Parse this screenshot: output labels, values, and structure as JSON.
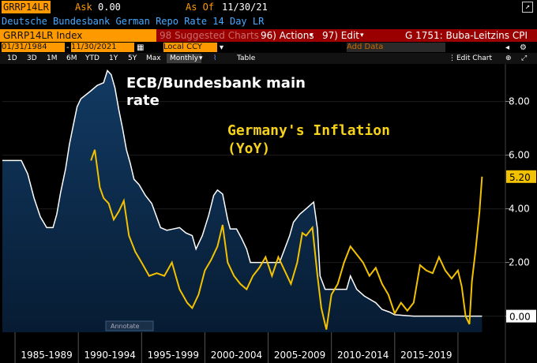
{
  "header": {
    "ticker": "GRRP14LR",
    "ask_label": "Ask",
    "ask_value": "0.00",
    "asof_label": "As Of",
    "asof_date": "11/30/21",
    "description": "Deutsche Bundesbank German Repo Rate 14 Day LR"
  },
  "toolbar": {
    "security": "GRRP14LR Index",
    "suggested": "98 Suggested Charts",
    "actions": "96) Actions",
    "edit": "97) Edit",
    "compare": "G 1751: Buba-Leitzins CPI"
  },
  "range": {
    "start": "01/31/1984",
    "end": "11/30/2021",
    "currency": "Local CCY"
  },
  "periods": [
    "1D",
    "3D",
    "1M",
    "6M",
    "YTD",
    "1Y",
    "5Y",
    "Max"
  ],
  "frequency": "Monthly",
  "table_label": "Table",
  "add_data_placeholder": "Add Data",
  "edit_chart": "Edit Chart",
  "annotate": "Annotate",
  "colors": {
    "repo": "#ffffff",
    "inflation": "#f2c200",
    "area": "#0a2c4d",
    "badge": "#f2c200"
  },
  "chart_data": {
    "type": "line",
    "xlabels": [
      "1985-1989",
      "1990-1994",
      "1995-1999",
      "2000-2004",
      "2005-2009",
      "2010-2014",
      "2015-2019"
    ],
    "ylim": [
      -0.6,
      9.4
    ],
    "yticks": [
      "0.00",
      "2.00",
      "4.00",
      "6.00",
      "8.00"
    ],
    "y_axis_side": "right",
    "last_value_badge": "5.20",
    "zero_badge": "0.00",
    "annotations": [
      {
        "lines": [
          "ECB/Bundesbank main",
          "rate"
        ],
        "color": "white"
      },
      {
        "lines": [
          "Germany's Inflation",
          "(YoY)"
        ],
        "color": "yellow"
      }
    ],
    "series": [
      {
        "name": "ECB/Bundesbank main rate",
        "x": [
          1984.0,
          1985.5,
          1986.0,
          1986.5,
          1987.0,
          1987.5,
          1988.0,
          1988.3,
          1988.6,
          1989.0,
          1989.3,
          1989.6,
          1989.9,
          1990.2,
          1991.0,
          1991.5,
          1992.0,
          1992.3,
          1992.6,
          1992.9,
          1993.2,
          1993.5,
          1993.8,
          1994.1,
          1994.4,
          1994.8,
          1995.3,
          1995.8,
          1996.5,
          1997.0,
          1998.0,
          1998.5,
          1999.0,
          1999.3,
          1999.8,
          2000.3,
          2000.7,
          2001.0,
          2001.4,
          2001.8,
          2002.0,
          2002.5,
          2002.9,
          2003.3,
          2003.6,
          2005.9,
          2006.3,
          2006.7,
          2007.0,
          2007.5,
          2008.0,
          2008.6,
          2008.9,
          2009.1,
          2009.5,
          2011.2,
          2011.5,
          2012.0,
          2012.6,
          2013.5,
          2014.0,
          2014.6,
          2015.0,
          2016.5,
          2021.9
        ],
        "y": [
          5.8,
          5.8,
          5.3,
          4.4,
          3.7,
          3.3,
          3.3,
          3.8,
          4.6,
          5.5,
          6.4,
          7.1,
          7.8,
          8.1,
          8.4,
          8.6,
          8.7,
          9.15,
          9.0,
          8.5,
          7.7,
          7.0,
          6.2,
          5.7,
          5.1,
          4.9,
          4.5,
          4.2,
          3.3,
          3.2,
          3.3,
          3.1,
          3.0,
          2.5,
          3.0,
          3.75,
          4.5,
          4.7,
          4.55,
          3.6,
          3.25,
          3.25,
          2.9,
          2.5,
          2.0,
          2.0,
          2.5,
          3.0,
          3.5,
          3.8,
          4.0,
          4.25,
          3.25,
          1.5,
          1.0,
          1.0,
          1.5,
          1.0,
          0.75,
          0.5,
          0.25,
          0.15,
          0.05,
          0.0,
          0.0
        ]
      },
      {
        "name": "Germany's Inflation (YoY)",
        "x": [
          1991.0,
          1991.3,
          1991.7,
          1992.0,
          1992.4,
          1992.8,
          1993.2,
          1993.6,
          1994.0,
          1994.5,
          1995.0,
          1995.6,
          1996.2,
          1996.8,
          1997.4,
          1998.0,
          1998.6,
          1999.0,
          1999.5,
          2000.0,
          2000.5,
          2001.0,
          2001.4,
          2001.8,
          2002.3,
          2002.8,
          2003.3,
          2003.8,
          2004.3,
          2004.8,
          2005.3,
          2005.8,
          2006.3,
          2006.8,
          2007.3,
          2007.7,
          2008.0,
          2008.5,
          2008.9,
          2009.2,
          2009.6,
          2010.0,
          2010.5,
          2011.0,
          2011.5,
          2012.0,
          2012.5,
          2013.0,
          2013.5,
          2014.0,
          2014.5,
          2015.0,
          2015.5,
          2016.0,
          2016.5,
          2017.0,
          2017.5,
          2018.0,
          2018.5,
          2019.0,
          2019.5,
          2020.0,
          2020.3,
          2020.6,
          2020.9,
          2021.1,
          2021.4,
          2021.7,
          2021.9
        ],
        "y": [
          5.8,
          6.2,
          4.8,
          4.4,
          4.2,
          3.6,
          3.9,
          4.3,
          3.0,
          2.4,
          2.0,
          1.5,
          1.6,
          1.5,
          2.0,
          1.0,
          0.5,
          0.3,
          0.8,
          1.7,
          2.1,
          2.6,
          3.4,
          2.0,
          1.5,
          1.2,
          1.0,
          1.5,
          1.8,
          2.2,
          1.5,
          2.2,
          1.7,
          1.2,
          2.0,
          3.1,
          3.0,
          3.3,
          1.5,
          0.3,
          -0.5,
          0.8,
          1.2,
          2.0,
          2.6,
          2.3,
          2.0,
          1.5,
          1.8,
          1.2,
          0.8,
          0.1,
          0.5,
          0.2,
          0.5,
          1.9,
          1.7,
          1.6,
          2.2,
          1.7,
          1.4,
          1.7,
          1.1,
          0.0,
          -0.3,
          1.3,
          2.5,
          3.9,
          5.2
        ]
      }
    ]
  }
}
